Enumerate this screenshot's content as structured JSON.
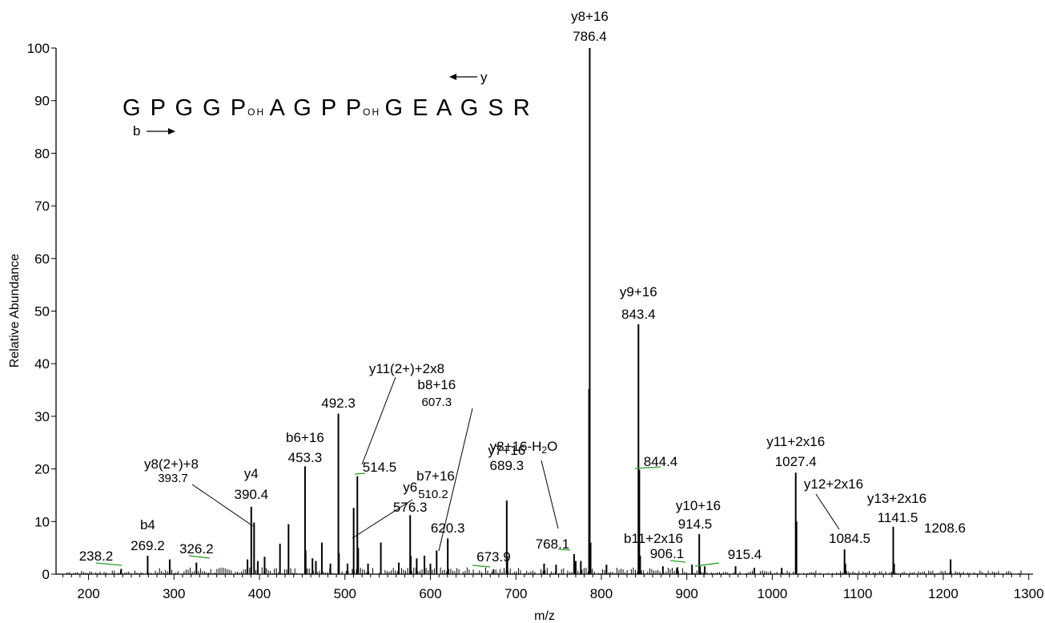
{
  "chart_data": {
    "type": "bar",
    "title": "",
    "xlabel": "m/z",
    "ylabel": "Relative Abundance",
    "xlim": [
      162,
      1305
    ],
    "ylim": [
      0,
      100
    ],
    "x_ticks": [
      200,
      300,
      400,
      500,
      600,
      700,
      800,
      900,
      1000,
      1100,
      1200,
      1300
    ],
    "y_ticks": [
      0,
      10,
      20,
      30,
      40,
      50,
      60,
      70,
      80,
      90,
      100
    ],
    "sequence": {
      "residues": [
        "G",
        "P",
        "G",
        "G",
        "P",
        "A",
        "G",
        "P",
        "P",
        "G",
        "E",
        "A",
        "G",
        "S",
        "R"
      ],
      "hydroxylated_index": [
        4,
        8
      ],
      "mod_label": "OH",
      "y_arrow_label": "y",
      "b_arrow_label": "b"
    },
    "peaks": [
      {
        "mz": 238.2,
        "intensity": 1.0,
        "label": "238.2"
      },
      {
        "mz": 269.2,
        "intensity": 3.5,
        "ion": "b4",
        "label": "269.2"
      },
      {
        "mz": 326.2,
        "intensity": 2.2,
        "label": "326.2"
      },
      {
        "mz": 390.4,
        "intensity": 12.8,
        "ion": "y4",
        "label": "390.4"
      },
      {
        "mz": 393.7,
        "intensity": 9.8,
        "ion": "y8(2+)+8",
        "label": "393.7"
      },
      {
        "mz": 453.3,
        "intensity": 20.5,
        "ion": "b6+16",
        "label": "453.3"
      },
      {
        "mz": 492.3,
        "intensity": 30.5,
        "label": "492.3"
      },
      {
        "mz": 510.2,
        "intensity": 12.6,
        "ion": "b7+16",
        "label": "510.2"
      },
      {
        "mz": 514.5,
        "intensity": 18.6,
        "ion": "y11(2+)+2x8",
        "label": "514.5"
      },
      {
        "mz": 576.3,
        "intensity": 11.2,
        "ion": "y6",
        "label": "576.3"
      },
      {
        "mz": 607.3,
        "intensity": 4.5,
        "ion": "b8+16",
        "label": "607.3"
      },
      {
        "mz": 620.3,
        "intensity": 6.8,
        "label": "620.3"
      },
      {
        "mz": 673.9,
        "intensity": 0.9,
        "label": "673.9"
      },
      {
        "mz": 689.3,
        "intensity": 14.0,
        "ion": "y7+16",
        "label": "689.3"
      },
      {
        "mz": 768.1,
        "intensity": 3.8,
        "ion": "y8+16-H2O",
        "label": "768.1"
      },
      {
        "mz": 786.4,
        "intensity": 100.0,
        "ion": "y8+16",
        "label": "786.4"
      },
      {
        "mz": 843.4,
        "intensity": 47.5,
        "ion": "y9+16",
        "label": "843.4"
      },
      {
        "mz": 844.4,
        "intensity": 19.8,
        "label": "844.4"
      },
      {
        "mz": 906.1,
        "intensity": 1.8,
        "ion": "b11+2x16",
        "label": "906.1"
      },
      {
        "mz": 914.5,
        "intensity": 7.6,
        "ion": "y10+16",
        "label": "914.5"
      },
      {
        "mz": 915.4,
        "intensity": 1.5,
        "label": "915.4"
      },
      {
        "mz": 1027.4,
        "intensity": 19.3,
        "ion": "y11+2x16",
        "label": "1027.4"
      },
      {
        "mz": 1084.5,
        "intensity": 4.7,
        "ion": "y12+2x16",
        "label": "1084.5"
      },
      {
        "mz": 1141.5,
        "intensity": 9.0,
        "ion": "y13+2x16",
        "label": "1141.5"
      },
      {
        "mz": 1208.6,
        "intensity": 2.8,
        "label": "1208.6"
      }
    ],
    "unlabeled_peaks": [
      {
        "mz": 785.6,
        "intensity": 35.2
      },
      {
        "mz": 1028.3,
        "intensity": 10.0
      },
      {
        "mz": 434.0,
        "intensity": 9.5
      },
      {
        "mz": 424.0,
        "intensity": 5.8
      },
      {
        "mz": 473.0,
        "intensity": 6.0
      },
      {
        "mz": 542.0,
        "intensity": 6.0
      },
      {
        "mz": 454.0,
        "intensity": 4.5
      },
      {
        "mz": 493.0,
        "intensity": 4.0
      },
      {
        "mz": 515.5,
        "intensity": 5.0
      },
      {
        "mz": 577.0,
        "intensity": 3.5
      },
      {
        "mz": 584.0,
        "intensity": 3.0
      },
      {
        "mz": 593.0,
        "intensity": 3.5
      },
      {
        "mz": 690.0,
        "intensity": 3.0
      },
      {
        "mz": 770.0,
        "intensity": 2.5
      },
      {
        "mz": 787.4,
        "intensity": 6.0
      },
      {
        "mz": 845.4,
        "intensity": 3.5
      },
      {
        "mz": 1085.5,
        "intensity": 2.0
      },
      {
        "mz": 1142.5,
        "intensity": 2.0
      },
      {
        "mz": 295.0,
        "intensity": 2.8
      },
      {
        "mz": 386.0,
        "intensity": 2.8
      },
      {
        "mz": 406.0,
        "intensity": 3.3
      },
      {
        "mz": 398.0,
        "intensity": 2.5
      },
      {
        "mz": 462.0,
        "intensity": 3.0
      },
      {
        "mz": 466.0,
        "intensity": 2.5
      },
      {
        "mz": 483.0,
        "intensity": 2.0
      },
      {
        "mz": 503.0,
        "intensity": 2.0
      },
      {
        "mz": 527.0,
        "intensity": 2.0
      },
      {
        "mz": 563.0,
        "intensity": 2.2
      },
      {
        "mz": 600.0,
        "intensity": 2.0
      },
      {
        "mz": 733.0,
        "intensity": 2.0
      },
      {
        "mz": 747.0,
        "intensity": 1.8
      },
      {
        "mz": 776.0,
        "intensity": 2.5
      },
      {
        "mz": 806.0,
        "intensity": 1.8
      },
      {
        "mz": 872.0,
        "intensity": 1.5
      },
      {
        "mz": 889.0,
        "intensity": 1.3
      },
      {
        "mz": 921.0,
        "intensity": 1.5
      },
      {
        "mz": 957.0,
        "intensity": 1.5
      },
      {
        "mz": 979.0,
        "intensity": 1.2
      },
      {
        "mz": 1011.0,
        "intensity": 1.2
      }
    ]
  }
}
